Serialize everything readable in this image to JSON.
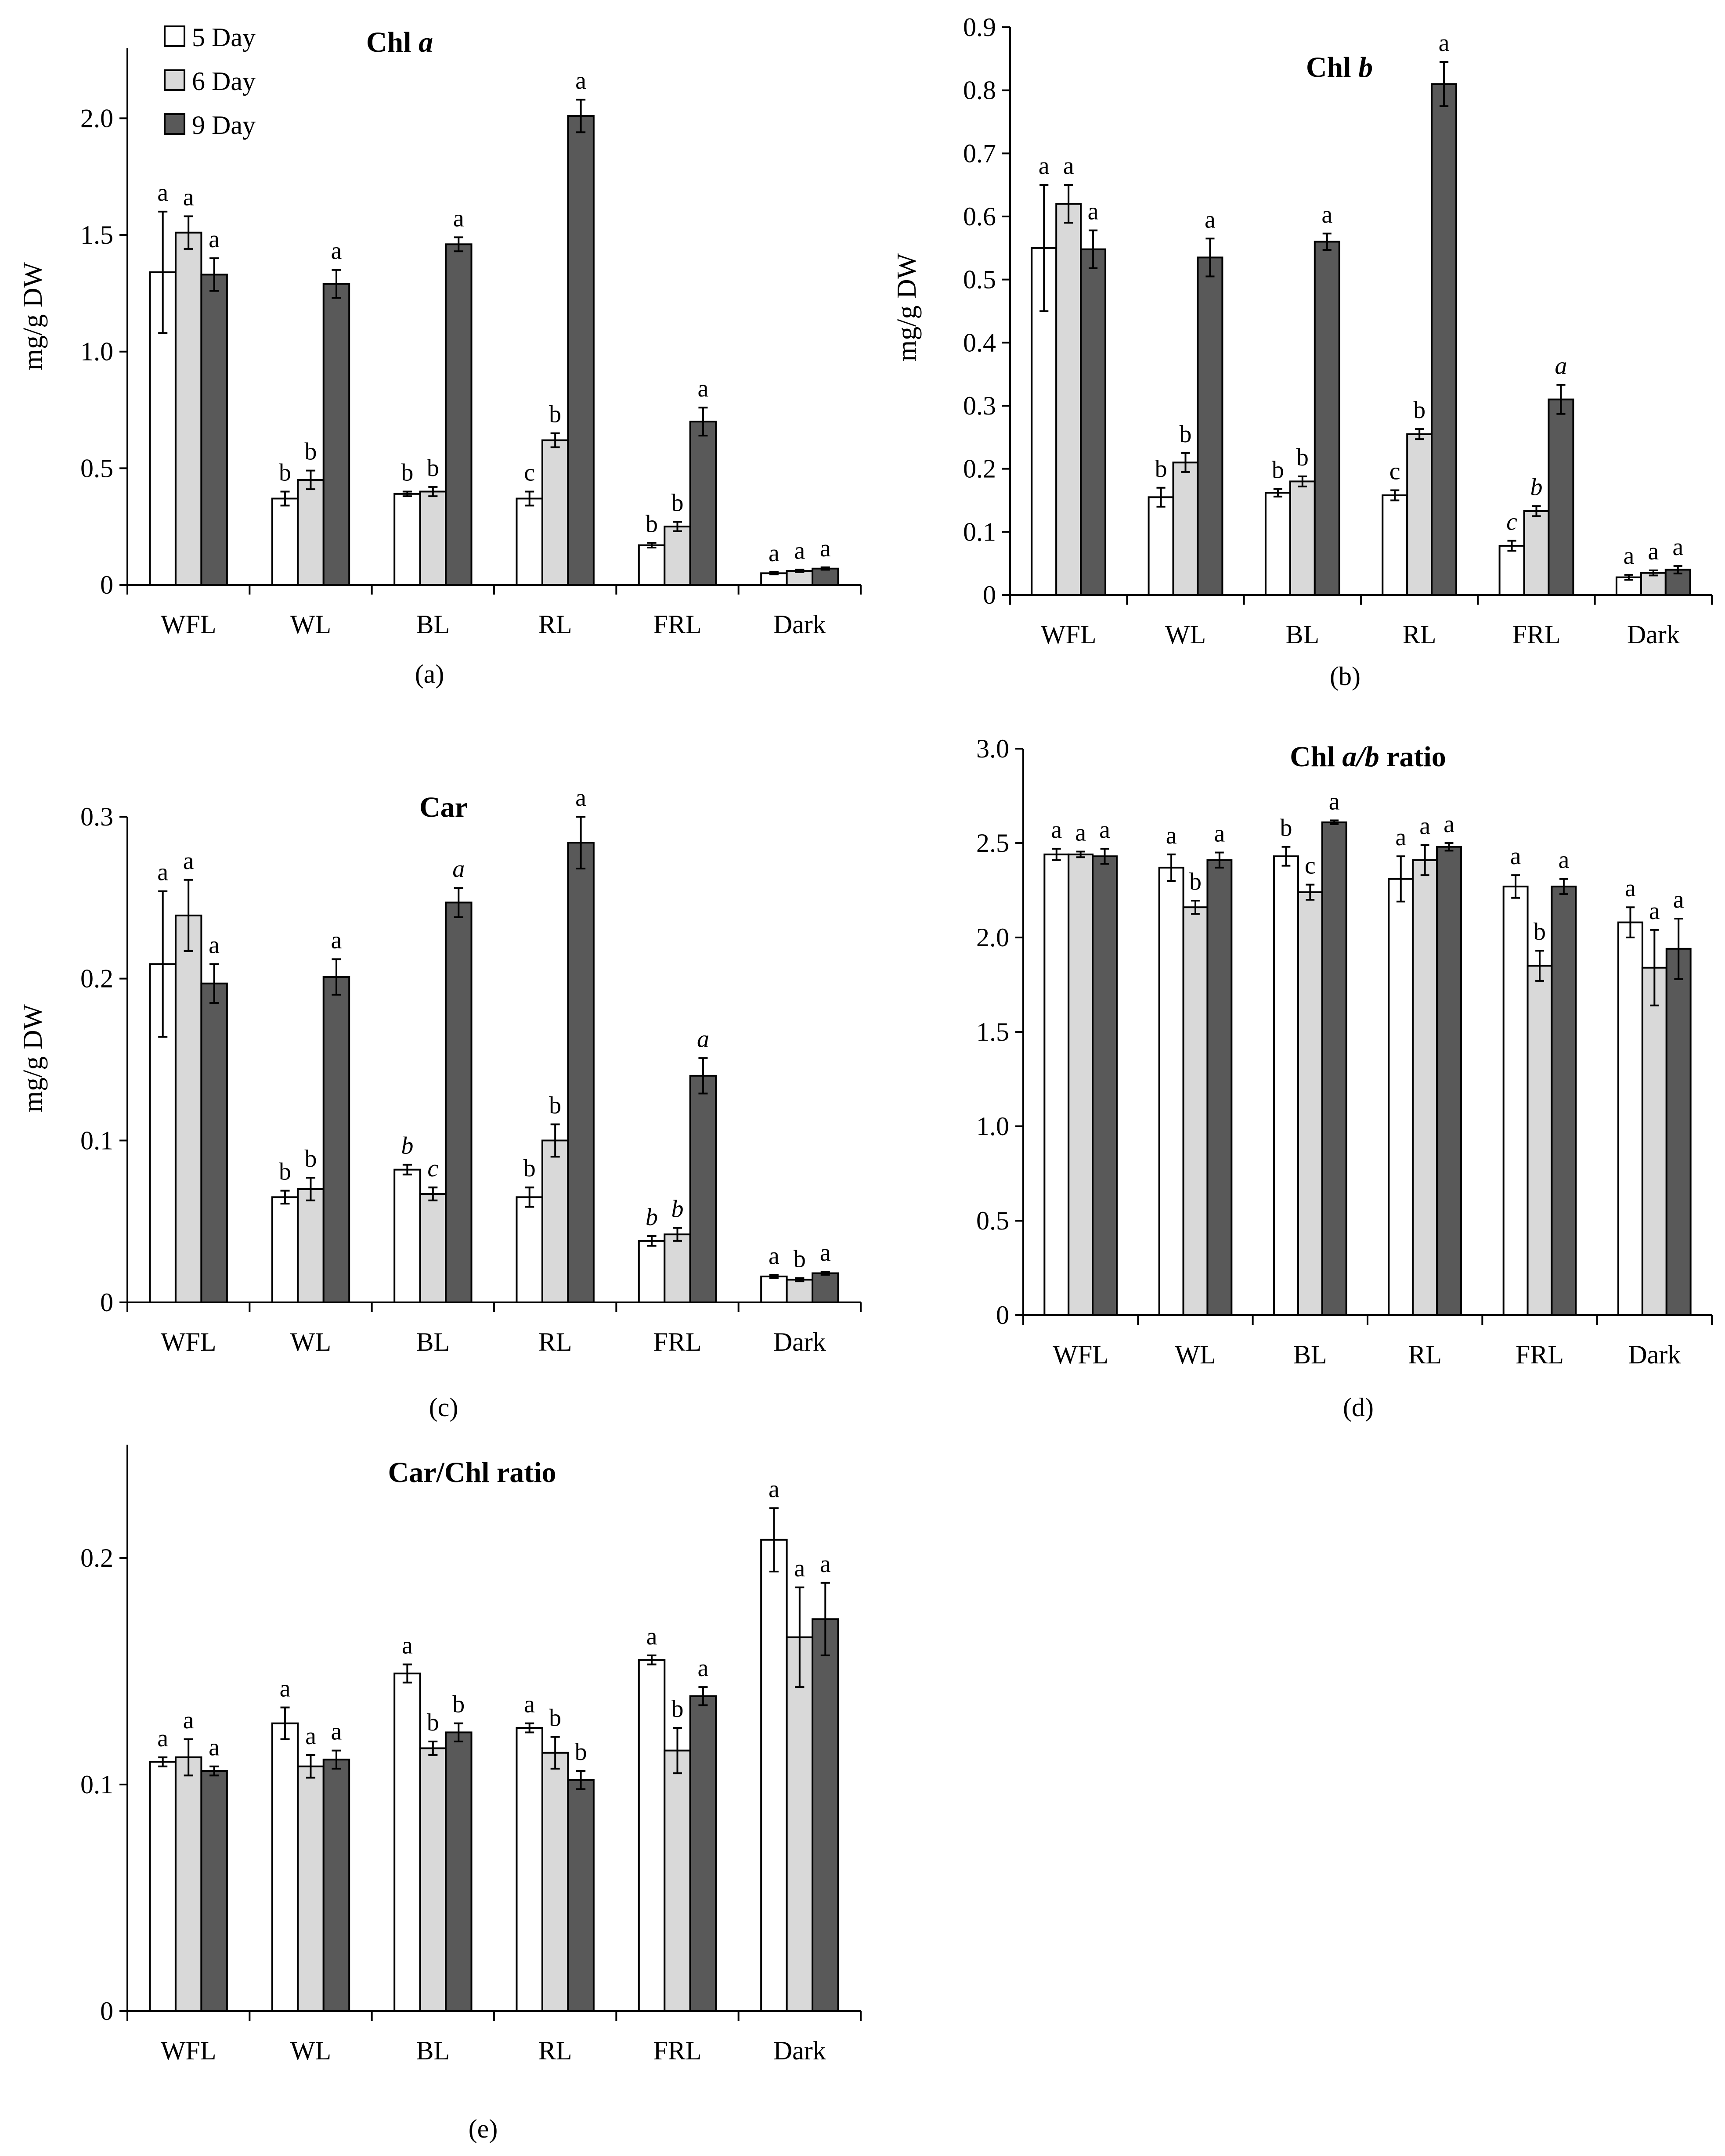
{
  "colors": {
    "day5": "#ffffff",
    "day6": "#d9d9d9",
    "day9": "#595959",
    "stroke": "#000000"
  },
  "legend": [
    {
      "key": "day5",
      "label": "5 Day"
    },
    {
      "key": "day6",
      "label": "6 Day"
    },
    {
      "key": "day9",
      "label": "9 Day"
    }
  ],
  "chart_data": [
    {
      "id": "a",
      "type": "bar",
      "panel_label": "(a)",
      "title_parts": [
        {
          "t": "Chl ",
          "i": false
        },
        {
          "t": "a",
          "i": true
        }
      ],
      "ylabel": "mg/g DW",
      "ylim": [
        0,
        2.3
      ],
      "yticks": [
        0,
        0.5,
        1.0,
        1.5,
        2.0
      ],
      "ytick_labels": [
        "0",
        "0.5",
        "1.0",
        "1.5",
        "2.0"
      ],
      "categories": [
        "WFL",
        "WL",
        "BL",
        "RL",
        "FRL",
        "Dark"
      ],
      "series": [
        {
          "name": "5 Day",
          "values": [
            1.34,
            0.37,
            0.39,
            0.37,
            0.17,
            0.05
          ],
          "errors": [
            0.26,
            0.03,
            0.01,
            0.03,
            0.01,
            0.005
          ],
          "sig": [
            "a",
            "b",
            "b",
            "c",
            "b",
            "a"
          ],
          "sig_italic": [
            false,
            false,
            false,
            false,
            false,
            false
          ]
        },
        {
          "name": "6 Day",
          "values": [
            1.51,
            0.45,
            0.4,
            0.62,
            0.25,
            0.06
          ],
          "errors": [
            0.07,
            0.04,
            0.02,
            0.03,
            0.02,
            0.005
          ],
          "sig": [
            "a",
            "b",
            "b",
            "b",
            "b",
            "a"
          ],
          "sig_italic": [
            false,
            false,
            false,
            false,
            false,
            false
          ]
        },
        {
          "name": "9 Day",
          "values": [
            1.33,
            1.29,
            1.46,
            2.01,
            0.7,
            0.07
          ],
          "errors": [
            0.07,
            0.06,
            0.03,
            0.07,
            0.06,
            0.005
          ],
          "sig": [
            "a",
            "a",
            "a",
            "a",
            "a",
            "a"
          ],
          "sig_italic": [
            false,
            false,
            false,
            false,
            false,
            false
          ]
        }
      ]
    },
    {
      "id": "b",
      "type": "bar",
      "panel_label": "(b)",
      "title_parts": [
        {
          "t": "Chl ",
          "i": false
        },
        {
          "t": "b",
          "i": true
        }
      ],
      "ylabel": "mg/g DW",
      "ylim": [
        0,
        0.9
      ],
      "yticks": [
        0,
        0.1,
        0.2,
        0.3,
        0.4,
        0.5,
        0.6,
        0.7,
        0.8,
        0.9
      ],
      "ytick_labels": [
        "0",
        "0.1",
        "0.2",
        "0.3",
        "0.4",
        "0.5",
        "0.6",
        "0.7",
        "0.8",
        "0.9"
      ],
      "categories": [
        "WFL",
        "WL",
        "BL",
        "RL",
        "FRL",
        "Dark"
      ],
      "series": [
        {
          "name": "5 Day",
          "values": [
            0.55,
            0.155,
            0.162,
            0.158,
            0.078,
            0.028
          ],
          "errors": [
            0.1,
            0.015,
            0.006,
            0.008,
            0.008,
            0.004
          ],
          "sig": [
            "a",
            "b",
            "b",
            "c",
            "c",
            "a"
          ],
          "sig_italic": [
            false,
            false,
            false,
            false,
            true,
            false
          ]
        },
        {
          "name": "6 Day",
          "values": [
            0.62,
            0.21,
            0.18,
            0.255,
            0.133,
            0.035
          ],
          "errors": [
            0.03,
            0.015,
            0.008,
            0.008,
            0.008,
            0.004
          ],
          "sig": [
            "a",
            "b",
            "b",
            "b",
            "b",
            "a"
          ],
          "sig_italic": [
            false,
            false,
            false,
            false,
            true,
            false
          ]
        },
        {
          "name": "9 Day",
          "values": [
            0.548,
            0.535,
            0.56,
            0.81,
            0.31,
            0.04
          ],
          "errors": [
            0.03,
            0.03,
            0.013,
            0.035,
            0.023,
            0.006
          ],
          "sig": [
            "a",
            "a",
            "a",
            "a",
            "a",
            "a"
          ],
          "sig_italic": [
            false,
            false,
            false,
            false,
            true,
            false
          ]
        }
      ]
    },
    {
      "id": "c",
      "type": "bar",
      "panel_label": "(c)",
      "title_parts": [
        {
          "t": "Car",
          "i": false
        }
      ],
      "ylabel": "mg/g DW",
      "ylim": [
        0,
        0.3
      ],
      "yticks": [
        0,
        0.1,
        0.2,
        0.3
      ],
      "ytick_labels": [
        "0",
        "0.1",
        "0.2",
        "0.3"
      ],
      "categories": [
        "WFL",
        "WL",
        "BL",
        "RL",
        "FRL",
        "Dark"
      ],
      "series": [
        {
          "name": "5 Day",
          "values": [
            0.209,
            0.065,
            0.082,
            0.065,
            0.038,
            0.016
          ],
          "errors": [
            0.045,
            0.004,
            0.003,
            0.006,
            0.003,
            0.001
          ],
          "sig": [
            "a",
            "b",
            "b",
            "b",
            "b",
            "a"
          ],
          "sig_italic": [
            false,
            false,
            true,
            false,
            true,
            false
          ]
        },
        {
          "name": "6 Day",
          "values": [
            0.239,
            0.07,
            0.067,
            0.1,
            0.042,
            0.014
          ],
          "errors": [
            0.022,
            0.007,
            0.004,
            0.01,
            0.004,
            0.001
          ],
          "sig": [
            "a",
            "b",
            "c",
            "b",
            "b",
            "b"
          ],
          "sig_italic": [
            false,
            false,
            true,
            false,
            true,
            false
          ]
        },
        {
          "name": "9 Day",
          "values": [
            0.197,
            0.201,
            0.247,
            0.284,
            0.14,
            0.018
          ],
          "errors": [
            0.012,
            0.011,
            0.009,
            0.016,
            0.011,
            0.001
          ],
          "sig": [
            "a",
            "a",
            "a",
            "a",
            "a",
            "a"
          ],
          "sig_italic": [
            false,
            false,
            true,
            false,
            true,
            false
          ]
        }
      ]
    },
    {
      "id": "d",
      "type": "bar",
      "panel_label": "(d)",
      "title_parts": [
        {
          "t": "Chl ",
          "i": false
        },
        {
          "t": "a/b",
          "i": true
        },
        {
          "t": " ratio",
          "i": false
        }
      ],
      "ylabel": "",
      "ylim": [
        0,
        3.0
      ],
      "yticks": [
        0,
        0.5,
        1.0,
        1.5,
        2.0,
        2.5,
        3.0
      ],
      "ytick_labels": [
        "0",
        "0.5",
        "1.0",
        "1.5",
        "2.0",
        "2.5",
        "3.0"
      ],
      "categories": [
        "WFL",
        "WL",
        "BL",
        "RL",
        "FRL",
        "Dark"
      ],
      "series": [
        {
          "name": "5 Day",
          "values": [
            2.44,
            2.37,
            2.43,
            2.31,
            2.27,
            2.08
          ],
          "errors": [
            0.03,
            0.07,
            0.05,
            0.12,
            0.06,
            0.08
          ],
          "sig": [
            "a",
            "a",
            "b",
            "a",
            "a",
            "a"
          ],
          "sig_italic": [
            false,
            false,
            false,
            false,
            false,
            false
          ]
        },
        {
          "name": "6 Day",
          "values": [
            2.44,
            2.16,
            2.24,
            2.41,
            1.85,
            1.84
          ],
          "errors": [
            0.015,
            0.035,
            0.04,
            0.08,
            0.08,
            0.2
          ],
          "sig": [
            "a",
            "b",
            "c",
            "a",
            "b",
            "a"
          ],
          "sig_italic": [
            false,
            false,
            false,
            false,
            false,
            false
          ]
        },
        {
          "name": "9 Day",
          "values": [
            2.43,
            2.41,
            2.61,
            2.48,
            2.27,
            1.94
          ],
          "errors": [
            0.04,
            0.04,
            0.01,
            0.02,
            0.04,
            0.16
          ],
          "sig": [
            "a",
            "a",
            "a",
            "a",
            "a",
            "a"
          ],
          "sig_italic": [
            false,
            false,
            false,
            false,
            false,
            false
          ]
        }
      ]
    },
    {
      "id": "e",
      "type": "bar",
      "panel_label": "(e)",
      "title_parts": [
        {
          "t": "Car/Chl  ratio",
          "i": false
        }
      ],
      "ylabel": "",
      "ylim": [
        0,
        0.25
      ],
      "yticks": [
        0,
        0.1,
        0.2
      ],
      "ytick_labels": [
        "0",
        "0.1",
        "0.2"
      ],
      "categories": [
        "WFL",
        "WL",
        "BL",
        "RL",
        "FRL",
        "Dark"
      ],
      "series": [
        {
          "name": "5 Day",
          "values": [
            0.11,
            0.127,
            0.149,
            0.125,
            0.155,
            0.208
          ],
          "errors": [
            0.002,
            0.007,
            0.004,
            0.002,
            0.002,
            0.014
          ],
          "sig": [
            "a",
            "a",
            "a",
            "a",
            "a",
            "a"
          ],
          "sig_italic": [
            false,
            false,
            false,
            false,
            false,
            false
          ]
        },
        {
          "name": "6 Day",
          "values": [
            0.112,
            0.108,
            0.116,
            0.114,
            0.115,
            0.165
          ],
          "errors": [
            0.008,
            0.005,
            0.003,
            0.007,
            0.01,
            0.022
          ],
          "sig": [
            "a",
            "a",
            "b",
            "b",
            "b",
            "a"
          ],
          "sig_italic": [
            false,
            false,
            false,
            false,
            false,
            false
          ]
        },
        {
          "name": "9 Day",
          "values": [
            0.106,
            0.111,
            0.123,
            0.102,
            0.139,
            0.173
          ],
          "errors": [
            0.002,
            0.004,
            0.004,
            0.004,
            0.004,
            0.016
          ],
          "sig": [
            "a",
            "a",
            "b",
            "b",
            "a",
            "a"
          ],
          "sig_italic": [
            false,
            false,
            false,
            false,
            false,
            false
          ]
        }
      ]
    }
  ]
}
